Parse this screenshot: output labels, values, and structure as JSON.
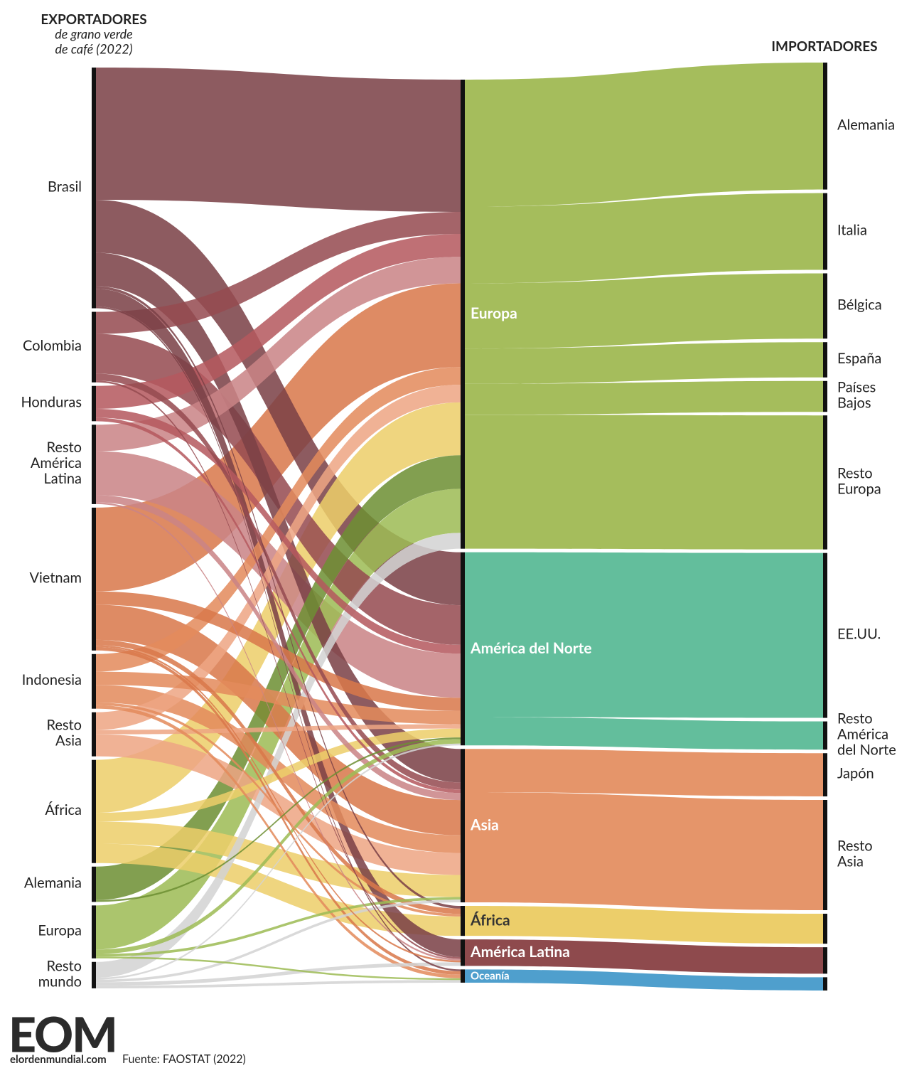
{
  "chart_data": {
    "type": "sankey",
    "left_title": "EXPORTADORES",
    "left_subtitle": [
      "de grano verde",
      "de café (2022)"
    ],
    "right_title": "IMPORTADORES",
    "exporters": [
      {
        "name": "Brasil",
        "label": [
          "Brasil"
        ],
        "color": "#7a4046"
      },
      {
        "name": "Colombia",
        "label": [
          "Colombia"
        ],
        "color": "#954a50"
      },
      {
        "name": "Honduras",
        "label": [
          "Honduras"
        ],
        "color": "#b5585e"
      },
      {
        "name": "Resto América Latina",
        "label": [
          "Resto",
          "América",
          "Latina"
        ],
        "color": "#c98386"
      },
      {
        "name": "Vietnam",
        "label": [
          "Vietnam"
        ],
        "color": "#d9784a"
      },
      {
        "name": "Indonesia",
        "label": [
          "Indonesia"
        ],
        "color": "#e38a5c"
      },
      {
        "name": "Resto Asia",
        "label": [
          "Resto",
          "Asia"
        ],
        "color": "#eea583"
      },
      {
        "name": "África",
        "label": [
          "África"
        ],
        "color": "#ecce6a"
      },
      {
        "name": "Alemania",
        "label": [
          "Alemania"
        ],
        "color": "#6e8f33"
      },
      {
        "name": "Europa",
        "label": [
          "Europa"
        ],
        "color": "#9dbb55"
      },
      {
        "name": "Resto mundo",
        "label": [
          "Resto",
          "mundo"
        ],
        "color": "#d3d3d3"
      }
    ],
    "regions": [
      {
        "name": "Europa",
        "color": "#a5bd5c"
      },
      {
        "name": "América del Norte",
        "color": "#63be9c"
      },
      {
        "name": "Asia",
        "color": "#e5956a"
      },
      {
        "name": "África",
        "color": "#ecce6a"
      },
      {
        "name": "América Latina",
        "color": "#8e4a4d"
      },
      {
        "name": "Oceanía",
        "color": "#4f9fcd"
      }
    ],
    "importers": [
      {
        "label": [
          "Alemania"
        ],
        "region": "Europa",
        "value": 14.4
      },
      {
        "label": [
          "Italia"
        ],
        "region": "Europa",
        "value": 8.7
      },
      {
        "label": [
          "Bélgica"
        ],
        "region": "Europa",
        "value": 7.4
      },
      {
        "label": [
          "España"
        ],
        "region": "Europa",
        "value": 4
      },
      {
        "label": [
          "Países",
          "Bajos"
        ],
        "region": "Europa",
        "value": 3.5
      },
      {
        "label": [
          "Resto",
          "Europa"
        ],
        "region": "Europa",
        "value": 15.2
      },
      {
        "label": [
          "EE.UU."
        ],
        "region": "América del Norte",
        "value": 18.7
      },
      {
        "label": [
          "Resto",
          "América",
          "del Norte"
        ],
        "region": "América del Norte",
        "value": 3.2
      },
      {
        "label": [
          "Japón"
        ],
        "region": "Asia",
        "value": 4.9
      },
      {
        "label": [
          "Resto",
          "Asia"
        ],
        "region": "Asia",
        "value": 12.5
      },
      {
        "label": null,
        "region": "África",
        "value": 3.4
      },
      {
        "label": null,
        "region": "América Latina",
        "value": 3
      },
      {
        "label": null,
        "region": "Oceanía",
        "value": 1.5
      }
    ],
    "flows": [
      {
        "source": "Brasil",
        "target": "Europa",
        "value": 15
      },
      {
        "source": "Brasil",
        "target": "América del Norte",
        "value": 6
      },
      {
        "source": "Brasil",
        "target": "Asia",
        "value": 3.8
      },
      {
        "source": "Brasil",
        "target": "África",
        "value": 0.3
      },
      {
        "source": "Brasil",
        "target": "América Latina",
        "value": 2
      },
      {
        "source": "Brasil",
        "target": "Oceanía",
        "value": 0.2
      },
      {
        "source": "Colombia",
        "target": "Europa",
        "value": 2.5
      },
      {
        "source": "Colombia",
        "target": "América del Norte",
        "value": 4.5
      },
      {
        "source": "Colombia",
        "target": "Asia",
        "value": 0.8
      },
      {
        "source": "Colombia",
        "target": "América Latina",
        "value": 0.2
      },
      {
        "source": "Honduras",
        "target": "Europa",
        "value": 2.6
      },
      {
        "source": "Honduras",
        "target": "América del Norte",
        "value": 1
      },
      {
        "source": "Honduras",
        "target": "Asia",
        "value": 0.4
      },
      {
        "source": "Resto América Latina",
        "target": "Europa",
        "value": 3
      },
      {
        "source": "Resto América Latina",
        "target": "América del Norte",
        "value": 5
      },
      {
        "source": "Resto América Latina",
        "target": "Asia",
        "value": 0.8
      },
      {
        "source": "Resto América Latina",
        "target": "América Latina",
        "value": 0.2
      },
      {
        "source": "Vietnam",
        "target": "Europa",
        "value": 9.5
      },
      {
        "source": "Vietnam",
        "target": "América del Norte",
        "value": 1.5
      },
      {
        "source": "Vietnam",
        "target": "Asia",
        "value": 4
      },
      {
        "source": "Vietnam",
        "target": "África",
        "value": 0.6
      },
      {
        "source": "Vietnam",
        "target": "América Latina",
        "value": 0.2
      },
      {
        "source": "Vietnam",
        "target": "Oceanía",
        "value": 0.4
      },
      {
        "source": "Indonesia",
        "target": "Europa",
        "value": 2
      },
      {
        "source": "Indonesia",
        "target": "América del Norte",
        "value": 1.5
      },
      {
        "source": "Indonesia",
        "target": "Asia",
        "value": 2
      },
      {
        "source": "Indonesia",
        "target": "África",
        "value": 0.3
      },
      {
        "source": "Indonesia",
        "target": "Oceanía",
        "value": 0.4
      },
      {
        "source": "Resto Asia",
        "target": "Europa",
        "value": 2
      },
      {
        "source": "Resto Asia",
        "target": "América del Norte",
        "value": 0.5
      },
      {
        "source": "Resto Asia",
        "target": "Asia",
        "value": 2.5
      },
      {
        "source": "África",
        "target": "Europa",
        "value": 6
      },
      {
        "source": "África",
        "target": "América del Norte",
        "value": 1
      },
      {
        "source": "África",
        "target": "Asia",
        "value": 2.5
      },
      {
        "source": "África",
        "target": "África",
        "value": 2.2
      },
      {
        "source": "Alemania",
        "target": "Europa",
        "value": 3.8
      },
      {
        "source": "Alemania",
        "target": "América del Norte",
        "value": 0.2
      },
      {
        "source": "Europa",
        "target": "Europa",
        "value": 5
      },
      {
        "source": "Europa",
        "target": "América del Norte",
        "value": 0.5
      },
      {
        "source": "Europa",
        "target": "Asia",
        "value": 0.3
      },
      {
        "source": "Europa",
        "target": "Oceanía",
        "value": 0.2
      },
      {
        "source": "Resto mundo",
        "target": "Europa",
        "value": 1.8
      },
      {
        "source": "Resto mundo",
        "target": "América del Norte",
        "value": 0.2
      },
      {
        "source": "Resto mundo",
        "target": "Asia",
        "value": 0.3
      },
      {
        "source": "Resto mundo",
        "target": "América Latina",
        "value": 0.4
      },
      {
        "source": "Resto mundo",
        "target": "Oceanía",
        "value": 0.3
      }
    ]
  },
  "footer": {
    "logo": "EOM",
    "site": "elordenmundial.com",
    "source": "Fuente: FAOSTAT (2022)"
  }
}
